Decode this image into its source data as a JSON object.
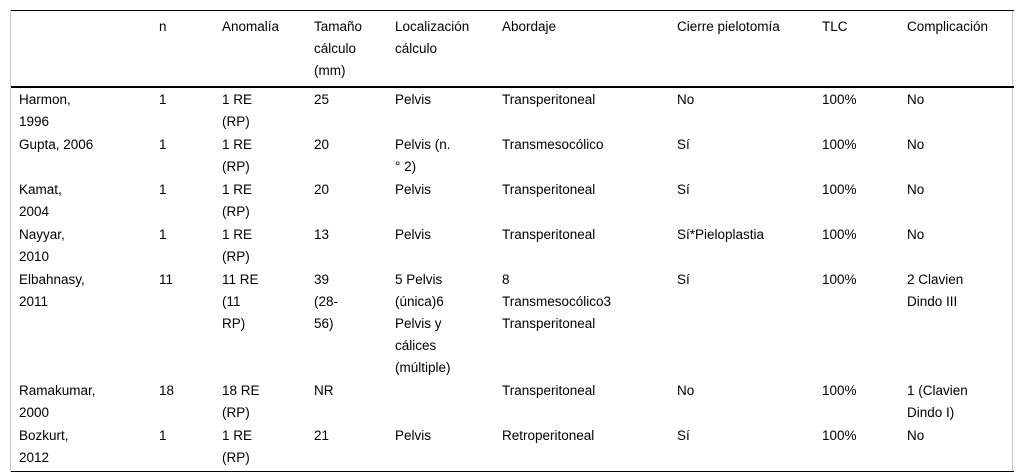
{
  "colors": {
    "background": "#ffffff",
    "text": "#000000",
    "rule": "#000000",
    "outer_border": "#c9c9c9"
  },
  "table": {
    "columns": [
      {
        "key": "study",
        "label": ""
      },
      {
        "key": "n",
        "label": "n"
      },
      {
        "key": "anomalia",
        "label": "Anomalía"
      },
      {
        "key": "tamano",
        "label": "Tamaño\ncálculo\n(mm)"
      },
      {
        "key": "localizacion",
        "label": "Localización\ncálculo"
      },
      {
        "key": "abordaje",
        "label": "Abordaje"
      },
      {
        "key": "cierre",
        "label": "Cierre pielotomía"
      },
      {
        "key": "tlc",
        "label": "TLC"
      },
      {
        "key": "complicacion",
        "label": "Complicación"
      }
    ],
    "rows": [
      {
        "cells": [
          "Harmon,\n1996",
          "1",
          "1 RE\n(RP)",
          "25",
          "Pelvis",
          "Transperitoneal",
          "No",
          "100%",
          "No"
        ]
      },
      {
        "cells": [
          "Gupta, 2006",
          "1",
          "1 RE\n(RP)",
          "20",
          "Pelvis (n.\n° 2)",
          "Transmesocólico",
          "Sí",
          "100%",
          "No"
        ]
      },
      {
        "cells": [
          "Kamat,\n2004",
          "1",
          "1 RE\n(RP)",
          "20",
          "Pelvis",
          "Transperitoneal",
          "Sí",
          "100%",
          "No"
        ]
      },
      {
        "cells": [
          "Nayyar,\n2010",
          "1",
          "1 RE\n(RP)",
          "13",
          "Pelvis",
          "Transperitoneal",
          "Sí*Pieloplastia",
          "100%",
          "No"
        ]
      },
      {
        "cells": [
          "Elbahnasy,\n2011",
          "11",
          "11 RE\n(11\nRP)",
          "39\n(28-\n56)",
          "5 Pelvis\n(única)6\nPelvis y\ncálices\n(múltiple)",
          "8\nTransmesocólico3\nTransperitoneal",
          "Sí",
          "100%",
          "2 Clavien\nDindo III"
        ]
      },
      {
        "cells": [
          "Ramakumar,\n2000",
          "18",
          "18 RE\n(RP)",
          "NR",
          "",
          "Transperitoneal",
          "No",
          "100%",
          "1 (Clavien\nDindo I)"
        ]
      },
      {
        "cells": [
          "Bozkurt,\n2012",
          "1",
          "1 RE\n(RP)",
          "21",
          "Pelvis",
          "Retroperitoneal",
          "Sí",
          "100%",
          "No"
        ]
      }
    ]
  }
}
